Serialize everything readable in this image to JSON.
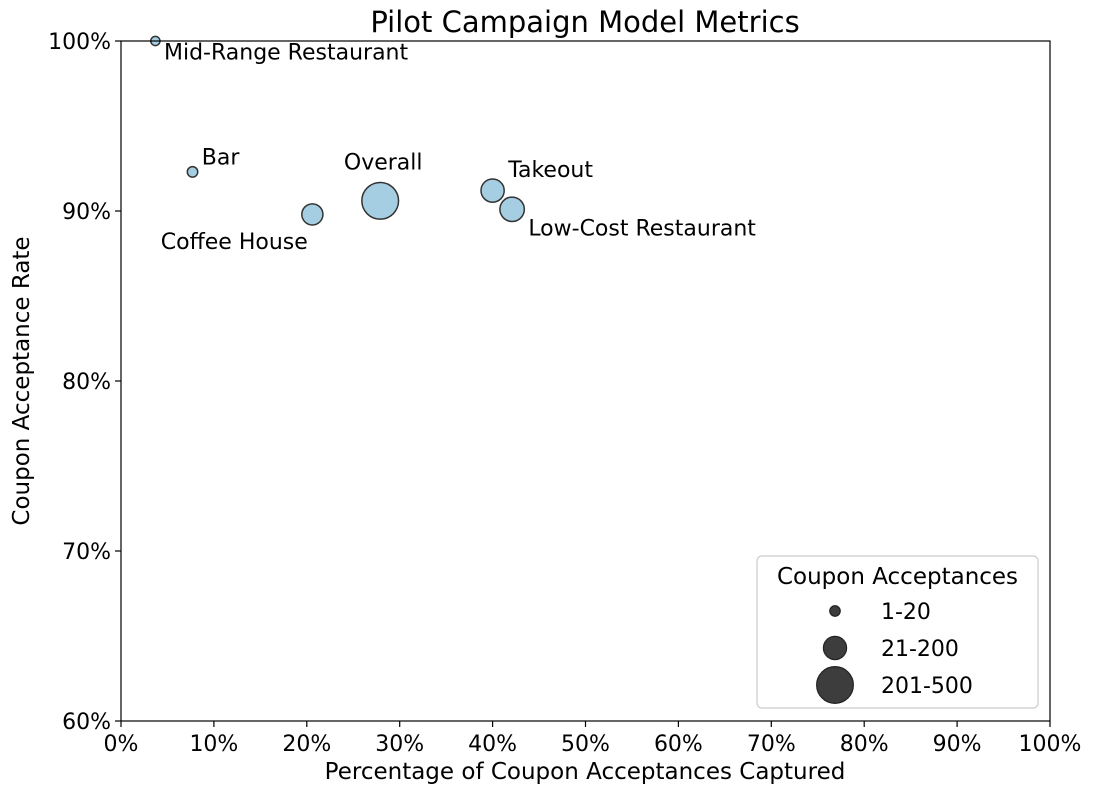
{
  "chart_data": {
    "type": "scatter",
    "title": "Pilot Campaign Model Metrics",
    "xlabel": "Percentage of Coupon Acceptances Captured",
    "ylabel": "Coupon Acceptance Rate",
    "xlim": [
      0,
      100
    ],
    "ylim": [
      60,
      100
    ],
    "x_ticks": [
      "0%",
      "10%",
      "20%",
      "30%",
      "40%",
      "50%",
      "60%",
      "70%",
      "80%",
      "90%",
      "100%"
    ],
    "y_ticks": [
      "60%",
      "70%",
      "80%",
      "90%",
      "100%"
    ],
    "grid": false,
    "points": [
      {
        "label": "Mid-Range Restaurant",
        "x": 3.7,
        "y": 100.0,
        "count": 7,
        "label_pos": "below-right"
      },
      {
        "label": "Bar",
        "x": 7.7,
        "y": 92.3,
        "count": 12,
        "label_pos": "above-right"
      },
      {
        "label": "Coffee House",
        "x": 20.6,
        "y": 89.8,
        "count": 110,
        "label_pos": "below-left"
      },
      {
        "label": "Overall",
        "x": 27.9,
        "y": 90.6,
        "count": 430,
        "label_pos": "above"
      },
      {
        "label": "Takeout",
        "x": 40.0,
        "y": 91.2,
        "count": 140,
        "label_pos": "above-right"
      },
      {
        "label": "Low-Cost Restaurant",
        "x": 42.1,
        "y": 90.1,
        "count": 160,
        "label_pos": "below-right"
      }
    ],
    "marker_color": "#a6cee3",
    "marker_edge_color": "#333333",
    "legend": {
      "title": "Coupon Acceptances",
      "placement": "lower right",
      "entries": [
        {
          "label": "1-20",
          "count": 12
        },
        {
          "label": "21-200",
          "count": 140
        },
        {
          "label": "201-500",
          "count": 430
        }
      ],
      "marker_color": "#333333"
    }
  }
}
